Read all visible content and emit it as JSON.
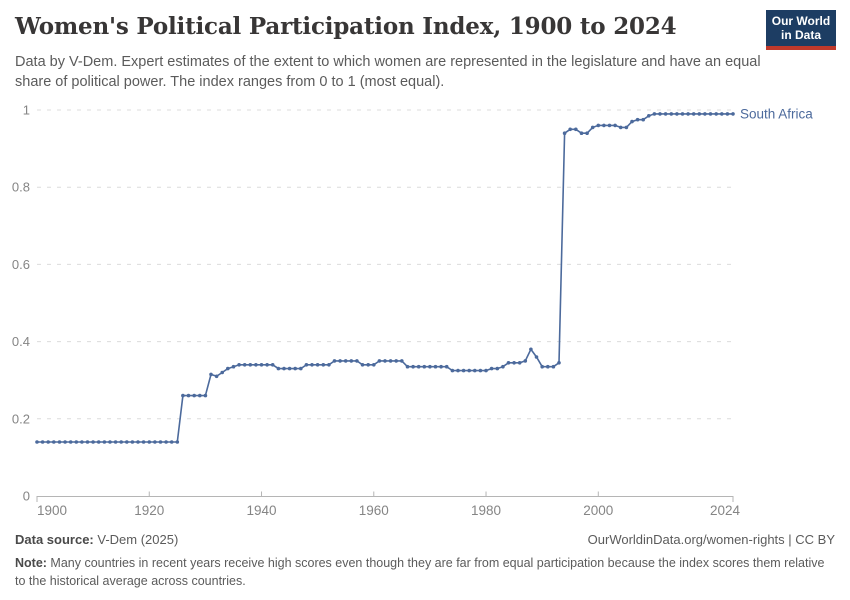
{
  "header": {
    "title": "Women's Political Participation Index, 1900 to 2024",
    "subtitle": "Data by V-Dem. Expert estimates of the extent to which women are represented in the legislature and have an equal share of political power. The index ranges from 0 to 1 (most equal).",
    "logo": {
      "line1": "Our World",
      "line2": "in Data"
    }
  },
  "chart_data": {
    "type": "line",
    "title": "Women's Political Participation Index, 1900 to 2024",
    "xlabel": "",
    "ylabel": "",
    "xlim": [
      1900,
      2024
    ],
    "ylim": [
      0,
      1
    ],
    "x_ticks": [
      1900,
      1920,
      1940,
      1960,
      1980,
      2000,
      2024
    ],
    "y_ticks": [
      0,
      0.2,
      0.4,
      0.6,
      0.8,
      1
    ],
    "grid": "dashed-horizontal",
    "legend_position": "end-of-line-label",
    "series": [
      {
        "name": "South Africa",
        "x_start": 1900,
        "x_step": 1,
        "values": [
          0.14,
          0.14,
          0.14,
          0.14,
          0.14,
          0.14,
          0.14,
          0.14,
          0.14,
          0.14,
          0.14,
          0.14,
          0.14,
          0.14,
          0.14,
          0.14,
          0.14,
          0.14,
          0.14,
          0.14,
          0.14,
          0.14,
          0.14,
          0.14,
          0.14,
          0.14,
          0.26,
          0.26,
          0.26,
          0.26,
          0.26,
          0.315,
          0.31,
          0.32,
          0.33,
          0.335,
          0.34,
          0.34,
          0.34,
          0.34,
          0.34,
          0.34,
          0.34,
          0.33,
          0.33,
          0.33,
          0.33,
          0.33,
          0.34,
          0.34,
          0.34,
          0.34,
          0.34,
          0.35,
          0.35,
          0.35,
          0.35,
          0.35,
          0.34,
          0.34,
          0.34,
          0.35,
          0.35,
          0.35,
          0.35,
          0.35,
          0.335,
          0.335,
          0.335,
          0.335,
          0.335,
          0.335,
          0.335,
          0.335,
          0.325,
          0.325,
          0.325,
          0.325,
          0.325,
          0.325,
          0.325,
          0.33,
          0.33,
          0.335,
          0.345,
          0.345,
          0.345,
          0.35,
          0.38,
          0.36,
          0.335,
          0.335,
          0.335,
          0.345,
          0.94,
          0.95,
          0.95,
          0.94,
          0.94,
          0.955,
          0.96,
          0.96,
          0.96,
          0.96,
          0.955,
          0.955,
          0.97,
          0.975,
          0.975,
          0.985,
          0.99,
          0.99,
          0.99,
          0.99,
          0.99,
          0.99,
          0.99,
          0.99,
          0.99,
          0.99,
          0.99,
          0.99,
          0.99,
          0.99,
          0.99
        ]
      }
    ],
    "end_label": "South Africa"
  },
  "footer": {
    "datasource_label": "Data source:",
    "datasource_value": " V-Dem (2025)",
    "rights": "OurWorldinData.org/women-rights | CC BY",
    "note_label": "Note:",
    "note_text": " Many countries in recent years receive high scores even though they are far from equal participation because the index scores them relative to the historical average across countries."
  },
  "colors": {
    "line": "#4c6a9c",
    "grid": "#dcdcdc",
    "axis": "#b5b5b5",
    "tick_text": "#858585",
    "title": "#383636",
    "body_text": "#5b5b5b",
    "logo_bg": "#1d3d63",
    "logo_stripe": "#c0392b"
  }
}
